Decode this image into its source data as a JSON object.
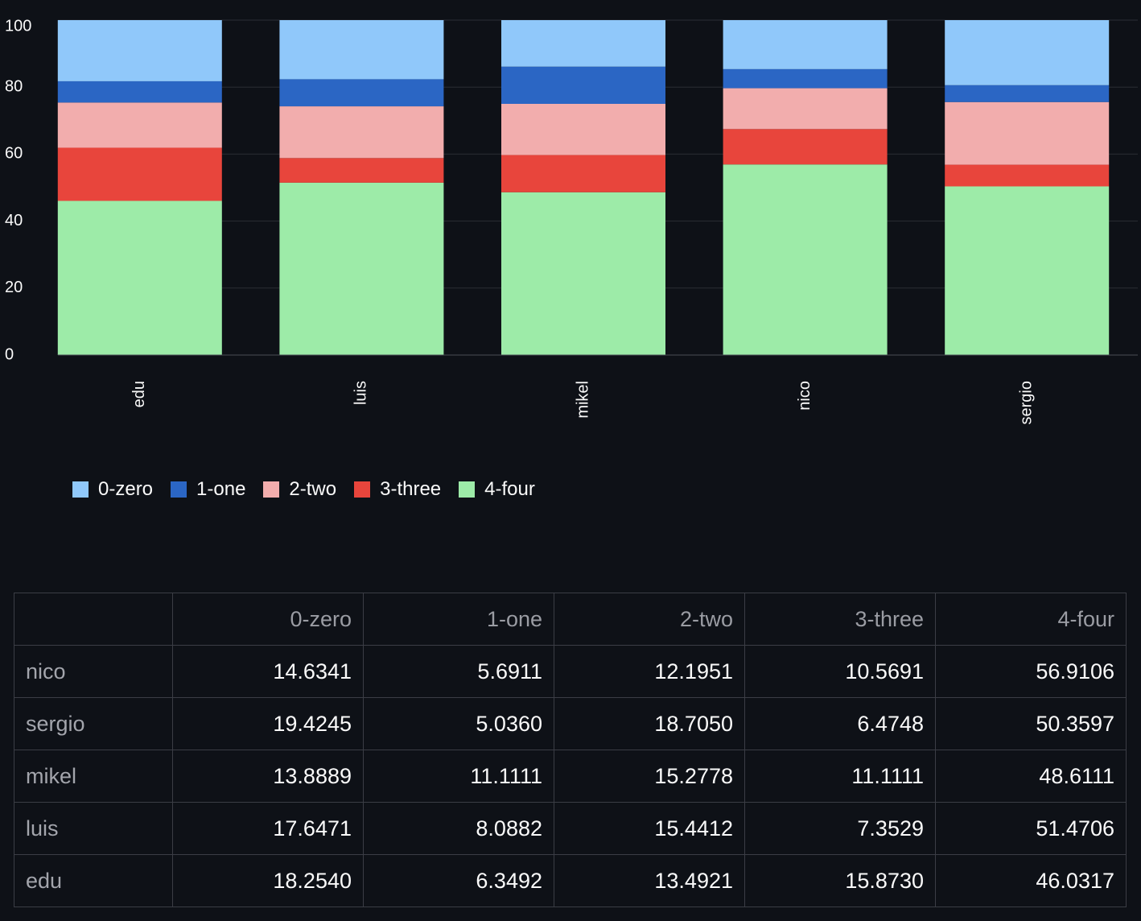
{
  "chart_data": {
    "type": "bar",
    "stacked": true,
    "categories": [
      "edu",
      "luis",
      "mikel",
      "nico",
      "sergio"
    ],
    "ylim": [
      0,
      100
    ],
    "yticks": [
      0,
      20,
      40,
      60,
      80,
      100
    ],
    "xlabel": "",
    "ylabel": "",
    "legend_position": "bottom-left",
    "series": [
      {
        "name": "0-zero",
        "color": "#90c8fa",
        "values": [
          18.254,
          17.6471,
          13.8889,
          14.6341,
          19.4245
        ]
      },
      {
        "name": "1-one",
        "color": "#2b66c4",
        "values": [
          6.3492,
          8.0882,
          11.1111,
          5.6911,
          5.036
        ]
      },
      {
        "name": "2-two",
        "color": "#f2adad",
        "values": [
          13.4921,
          15.4412,
          15.2778,
          12.1951,
          18.705
        ]
      },
      {
        "name": "3-three",
        "color": "#e8453c",
        "values": [
          15.873,
          7.3529,
          11.1111,
          10.5691,
          6.4748
        ]
      },
      {
        "name": "4-four",
        "color": "#9deba8",
        "values": [
          46.0317,
          51.4706,
          48.6111,
          56.9106,
          50.3597
        ]
      }
    ]
  },
  "table": {
    "columns": [
      "0-zero",
      "1-one",
      "2-two",
      "3-three",
      "4-four"
    ],
    "rows": [
      {
        "label": "nico",
        "values": [
          "14.6341",
          "5.6911",
          "12.1951",
          "10.5691",
          "56.9106"
        ]
      },
      {
        "label": "sergio",
        "values": [
          "19.4245",
          "5.0360",
          "18.7050",
          "6.4748",
          "50.3597"
        ]
      },
      {
        "label": "mikel",
        "values": [
          "13.8889",
          "11.1111",
          "15.2778",
          "11.1111",
          "48.6111"
        ]
      },
      {
        "label": "luis",
        "values": [
          "17.6471",
          "8.0882",
          "15.4412",
          "7.3529",
          "51.4706"
        ]
      },
      {
        "label": "edu",
        "values": [
          "18.2540",
          "6.3492",
          "13.4921",
          "15.8730",
          "46.0317"
        ]
      }
    ]
  },
  "colors": {
    "background": "#0e1117",
    "grid": "#2a2d34",
    "axis": "#4a4d55"
  }
}
